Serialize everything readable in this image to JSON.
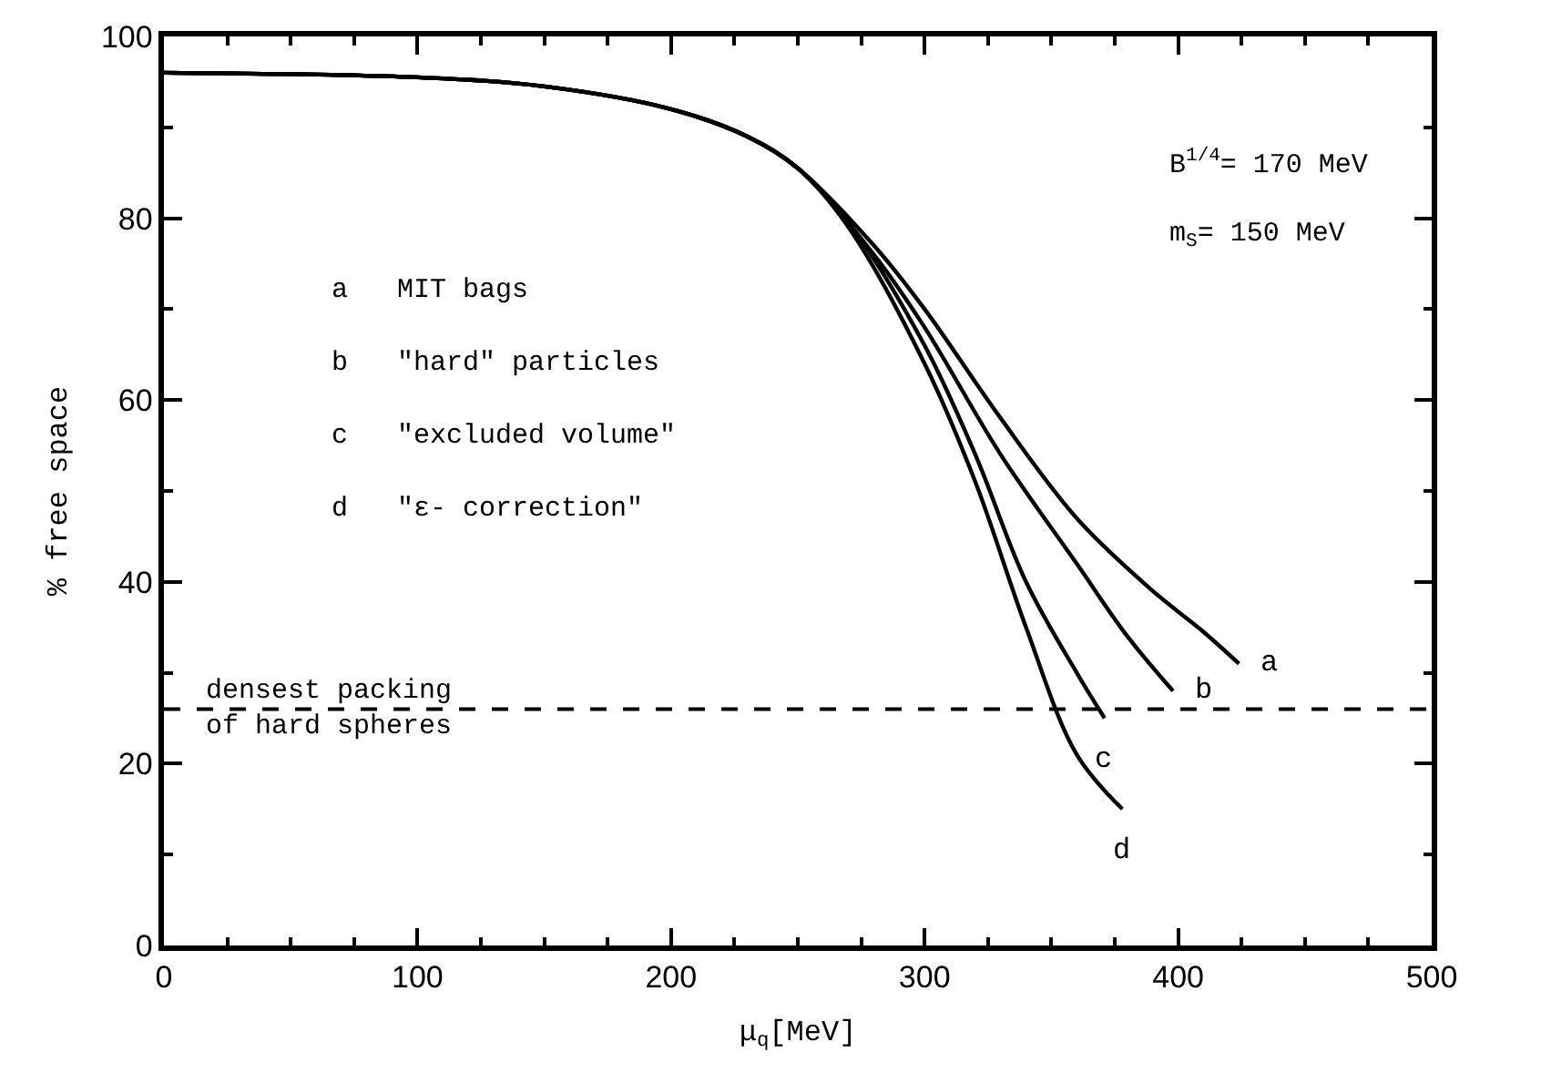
{
  "chart_data": {
    "type": "line",
    "xlabel": "μ$_{q}$[MeV]",
    "ylabel": "% free space",
    "xlim": [
      0,
      500
    ],
    "xticks": [
      0,
      100,
      200,
      300,
      400,
      500
    ],
    "ylim": [
      0,
      100
    ],
    "yticks": [
      0,
      20,
      40,
      60,
      80,
      100
    ],
    "legend": false,
    "marker": "none",
    "line_style": "solid",
    "series": [
      {
        "name": "a",
        "color": "#000000",
        "x": [
          0,
          100,
          150,
          200,
          230,
          250,
          280,
          300,
          330,
          360,
          390,
          410,
          424
        ],
        "values": [
          96,
          95.5,
          94.5,
          92,
          89,
          85.5,
          77,
          70,
          58,
          47,
          39,
          34.5,
          31
        ]
      },
      {
        "name": "b",
        "color": "#000000",
        "x": [
          0,
          100,
          150,
          200,
          230,
          250,
          280,
          300,
          330,
          360,
          380,
          398
        ],
        "values": [
          96,
          95.5,
          94.5,
          92,
          89,
          85.5,
          76,
          68,
          54,
          42,
          34,
          28
        ]
      },
      {
        "name": "c",
        "color": "#000000",
        "x": [
          0,
          100,
          150,
          200,
          230,
          250,
          270,
          300,
          320,
          340,
          360,
          371
        ],
        "values": [
          96,
          95.5,
          94.5,
          92,
          89,
          85.5,
          79.5,
          66,
          54,
          40,
          30,
          25
        ]
      },
      {
        "name": "d",
        "color": "#000000",
        "x": [
          0,
          100,
          150,
          200,
          230,
          250,
          270,
          300,
          320,
          340,
          360,
          378
        ],
        "values": [
          96,
          95.5,
          94.5,
          92,
          89,
          85.5,
          79,
          64,
          51,
          35,
          21,
          15
        ]
      }
    ],
    "ref_lines": [
      {
        "axis": "y",
        "value": 26,
        "label": "densest packing\nof hard spheres",
        "color": "#000000",
        "line_style": "dashed"
      }
    ],
    "annotations": [
      "B$^{1/4}$= 170 MeV",
      "m$_{S}$= 150 MeV",
      "a   MIT bags",
      "b   \"hard\" particles",
      "c   \"excluded volume\"",
      "d   \"ε- correction\""
    ]
  }
}
